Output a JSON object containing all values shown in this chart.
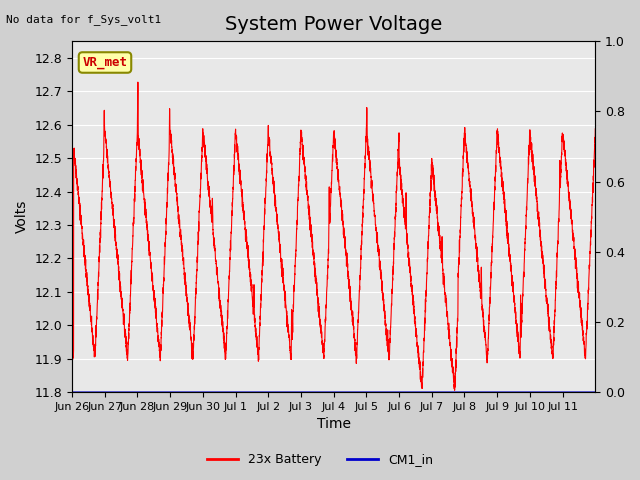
{
  "title": "System Power Voltage",
  "no_data_label": "No data for f_Sys_volt1",
  "ylabel_left": "Volts",
  "xlabel": "Time",
  "ylabel_right_ticks": [
    0.0,
    0.2,
    0.4,
    0.6,
    0.8,
    1.0
  ],
  "ylim_left": [
    11.8,
    12.85
  ],
  "ylim_right": [
    0.0,
    1.0
  ],
  "fig_bg_color": "#d0d0d0",
  "plot_bg_color": "#e8e8e8",
  "legend_entries": [
    "23x Battery",
    "CM1_in"
  ],
  "legend_colors": [
    "#ff0000",
    "#0000cc"
  ],
  "vr_met_label": "VR_met",
  "vr_met_bg": "#ffffaa",
  "vr_met_text_color": "#cc0000",
  "line_color": "#ff0000",
  "cm1_color": "#0000cc",
  "x_tick_labels": [
    "Jun 26",
    "Jun 27",
    "Jun 28",
    "Jun 29",
    "Jun 30",
    "Jul 1",
    "Jul 2",
    "Jul 3",
    "Jul 4",
    "Jul 5",
    "Jul 6",
    "Jul 7",
    "Jul 8",
    "Jul 9",
    "Jul 10",
    "Jul 11"
  ],
  "yticks_left": [
    11.8,
    11.9,
    12.0,
    12.1,
    12.2,
    12.3,
    12.4,
    12.5,
    12.6,
    12.7,
    12.8
  ],
  "title_fontsize": 14,
  "axis_fontsize": 10,
  "tick_fontsize": 9,
  "n_days": 16
}
